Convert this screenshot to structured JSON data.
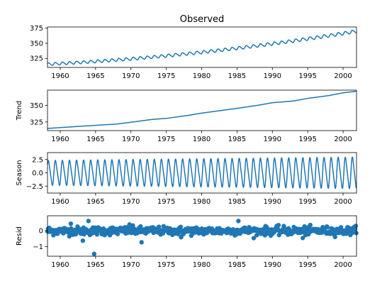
{
  "chart_data": [
    {
      "id": "observed",
      "type": "line",
      "title": "Observed",
      "ylabel": "",
      "xlim": [
        1958.2,
        2001.9
      ],
      "ylim": [
        310,
        377
      ],
      "yticks": [
        325,
        350,
        375
      ],
      "xticks": [
        1960,
        1965,
        1970,
        1975,
        1980,
        1985,
        1990,
        1995,
        2000
      ],
      "trend_start": 315.4,
      "trend_end": 370.0,
      "trend_curvature": 0.55,
      "seasonal_amplitude_start": 2.6,
      "seasonal_amplitude_end": 3.1,
      "x": [
        1958.2,
        1965,
        1970,
        1975,
        1980,
        1985,
        1990,
        1995,
        2001.9
      ],
      "y": [
        315.4,
        320.0,
        325.5,
        330.9,
        338.7,
        345.9,
        354.0,
        361.0,
        370.0
      ]
    },
    {
      "id": "trend",
      "type": "line",
      "title": "",
      "ylabel": "Trend",
      "xlim": [
        1958.2,
        2001.9
      ],
      "ylim": [
        312,
        373
      ],
      "yticks": [
        325,
        350
      ],
      "xticks": [
        1960,
        1965,
        1970,
        1975,
        1980,
        1985,
        1990,
        1995,
        2000
      ],
      "x": [
        1958.2,
        1960,
        1965,
        1968,
        1970,
        1973,
        1975,
        1978,
        1980,
        1983,
        1985,
        1988,
        1990,
        1993,
        1995,
        1998,
        2000,
        2001.9
      ],
      "y": [
        315.2,
        316.5,
        319.9,
        321.9,
        324.6,
        328.9,
        330.4,
        334.8,
        338.4,
        342.6,
        345.6,
        350.2,
        354.0,
        356.7,
        360.5,
        364.8,
        369.0,
        371.2
      ]
    },
    {
      "id": "season",
      "type": "line",
      "title": "",
      "ylabel": "Season",
      "xlim": [
        1958.2,
        2001.9
      ],
      "ylim": [
        -3.8,
        3.8
      ],
      "yticks": [
        2.5,
        0.0,
        -2.5
      ],
      "ytick_labels": [
        "2.5",
        "0.0",
        "−2.5"
      ],
      "xticks": [
        1960,
        1965,
        1970,
        1975,
        1980,
        1985,
        1990,
        1995,
        2000
      ],
      "amplitude_start": 2.6,
      "amplitude_end": 3.3,
      "period_years": 1.0
    },
    {
      "id": "resid",
      "type": "scatter",
      "title": "",
      "ylabel": "Resid",
      "xlim": [
        1958.2,
        2001.9
      ],
      "ylim": [
        -1.6,
        0.95
      ],
      "yticks": [
        0,
        -1
      ],
      "ytick_labels": [
        "0",
        "−1"
      ],
      "xticks": [
        1960,
        1965,
        1970,
        1975,
        1980,
        1985,
        1990,
        1995,
        2000
      ],
      "noise_scale": 0.22,
      "outliers": [
        {
          "x": 1964.8,
          "y": -1.45
        },
        {
          "x": 1971.5,
          "y": -0.72
        },
        {
          "x": 1963.2,
          "y": -0.62
        },
        {
          "x": 1964.0,
          "y": 0.62
        },
        {
          "x": 1985.2,
          "y": 0.62
        },
        {
          "x": 1961.5,
          "y": 0.45
        },
        {
          "x": 1994.3,
          "y": -0.45
        },
        {
          "x": 1977.1,
          "y": -0.4
        },
        {
          "x": 1969.8,
          "y": 0.4
        }
      ]
    }
  ],
  "colors": {
    "series": "#1f77b4",
    "axis": "#000000",
    "background": "#ffffff"
  }
}
